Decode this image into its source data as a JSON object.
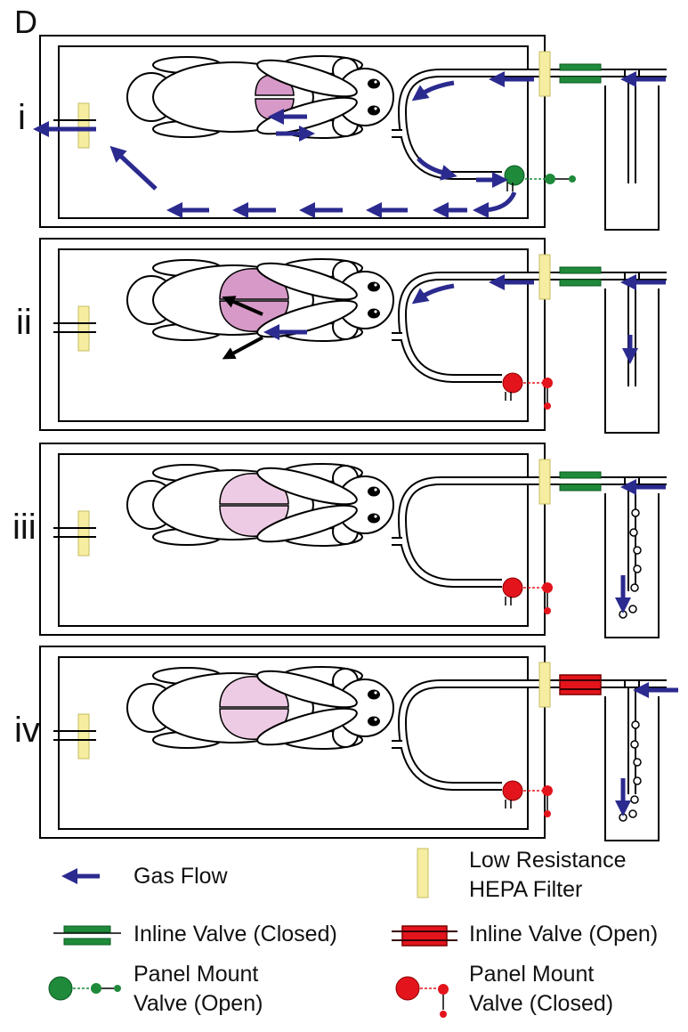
{
  "figure": {
    "panel_letter": "D",
    "panels": [
      {
        "label": "i",
        "state": "vent"
      },
      {
        "label": "ii",
        "state": "inflate"
      },
      {
        "label": "iii",
        "state": "hold"
      },
      {
        "label": "iv",
        "state": "relief"
      }
    ]
  },
  "legend": {
    "gas_flow": "Gas Flow",
    "filter_line1": "Low Resistance",
    "filter_line2": "HEPA Filter",
    "inline_closed": "Inline Valve (Closed)",
    "inline_open": "Inline Valve (Open)",
    "panel_open_line1": "Panel Mount",
    "panel_open_line2": "Valve (Open)",
    "panel_closed_line1": "Panel Mount",
    "panel_closed_line2": "Valve (Closed)"
  },
  "colors": {
    "arrow": "#2b2a8f",
    "filter": "#f6eda0",
    "valve_green": "#1f8a3a",
    "valve_red": "#e3141c",
    "lung_dark": "#d79ac8",
    "lung_light": "#eecbe4"
  }
}
